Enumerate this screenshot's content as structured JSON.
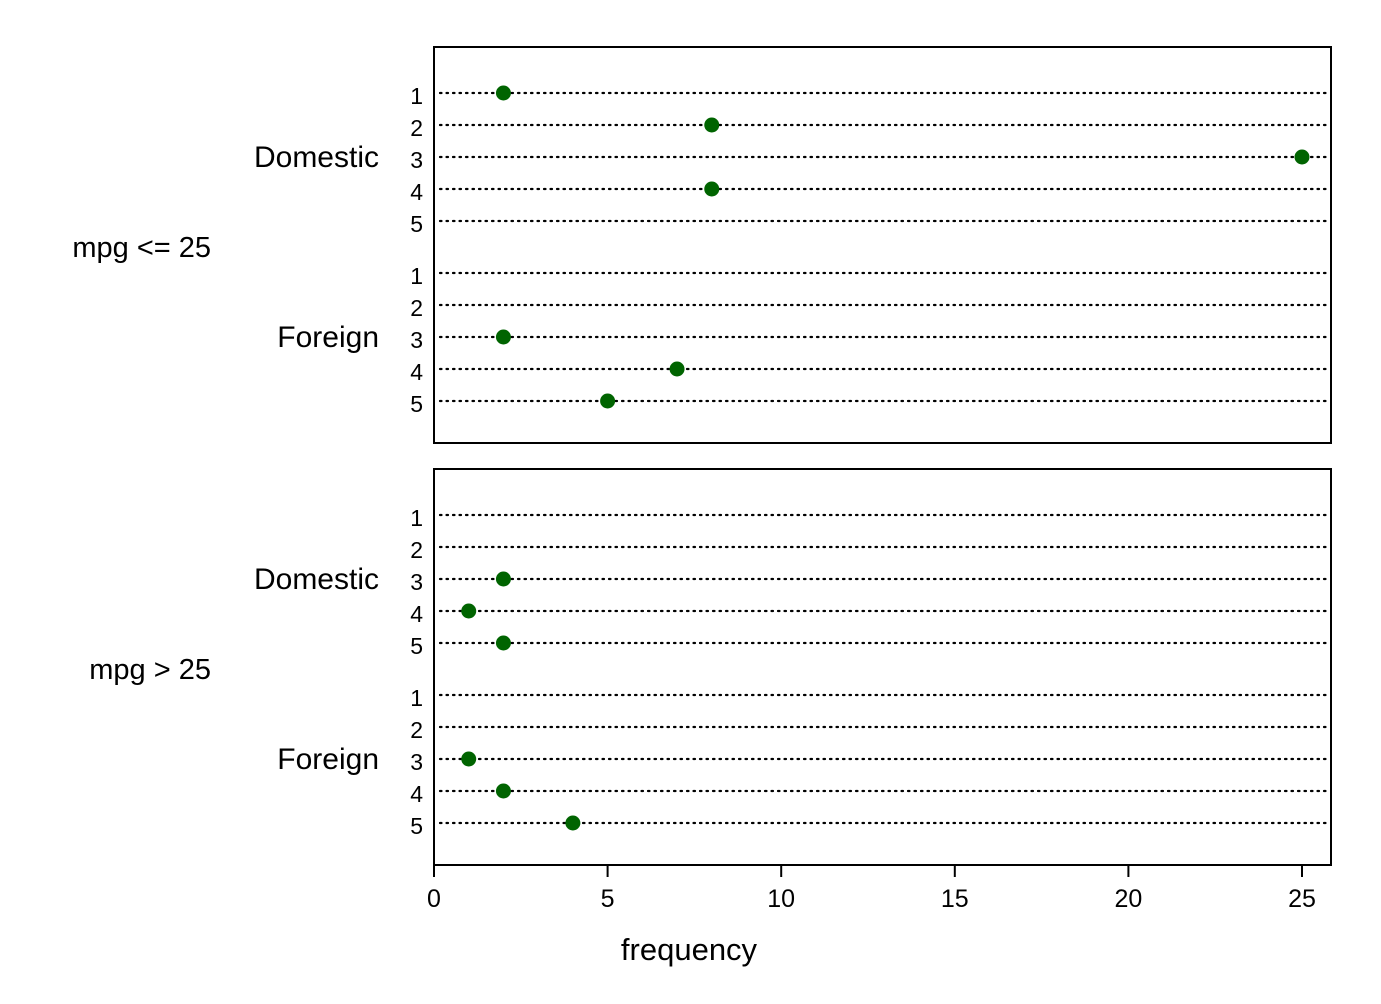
{
  "chart_data": {
    "type": "dot",
    "xlabel": "frequency",
    "xlim": [
      0,
      25.8
    ],
    "xticks": [
      0,
      5,
      10,
      15,
      20,
      25
    ],
    "grid": "dotted-row-lines",
    "colors": {
      "marker": "#006400",
      "frame": "#000000",
      "dotline": "#000000"
    },
    "panels": [
      {
        "label": "mpg <= 25",
        "groups": [
          {
            "label": "Domestic",
            "categories": [
              "1",
              "2",
              "3",
              "4",
              "5"
            ],
            "values": [
              2,
              8,
              25,
              8,
              null
            ]
          },
          {
            "label": "Foreign",
            "categories": [
              "1",
              "2",
              "3",
              "4",
              "5"
            ],
            "values": [
              null,
              null,
              2,
              7,
              5
            ]
          }
        ]
      },
      {
        "label": "mpg > 25",
        "groups": [
          {
            "label": "Domestic",
            "categories": [
              "1",
              "2",
              "3",
              "4",
              "5"
            ],
            "values": [
              null,
              null,
              2,
              1,
              2
            ]
          },
          {
            "label": "Foreign",
            "categories": [
              "1",
              "2",
              "3",
              "4",
              "5"
            ],
            "values": [
              null,
              null,
              1,
              2,
              4
            ]
          }
        ]
      }
    ]
  }
}
